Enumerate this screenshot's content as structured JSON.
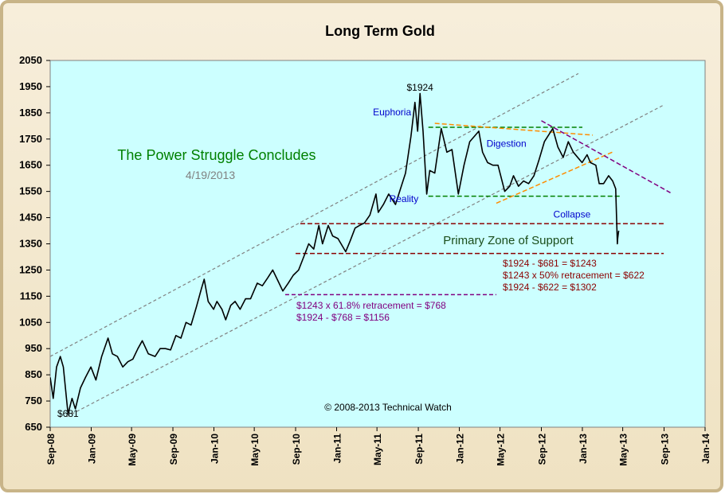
{
  "chart_data": {
    "type": "line",
    "title": "Long Term Gold",
    "subtitle": "The Power Struggle Concludes",
    "date": "4/19/2013",
    "copyright": "© 2008-2013 Technical Watch",
    "xlabel": "",
    "ylabel": "",
    "ylim": [
      650,
      2050
    ],
    "yticks": [
      650,
      750,
      850,
      950,
      1050,
      1150,
      1250,
      1350,
      1450,
      1550,
      1650,
      1750,
      1850,
      1950,
      2050
    ],
    "xlim": [
      "2008-09-01",
      "2014-01-01"
    ],
    "xticks": [
      "Sep-08",
      "Jan-09",
      "May-09",
      "Sep-09",
      "Jan-10",
      "May-10",
      "Sep-10",
      "Jan-11",
      "May-11",
      "Sep-11",
      "Jan-12",
      "May-12",
      "Sep-12",
      "Jan-13",
      "May-13",
      "Sep-13",
      "Jan-14"
    ],
    "grid": false,
    "colors": {
      "plot_bg": "#ccffff",
      "price": "#000000",
      "channel": "#808080",
      "support_zone": "#8b0000",
      "retracement": "#800080",
      "digestion_box": "#008000",
      "wedge": "#ff8c00",
      "downtrend": "#800080",
      "subtitle": "#008000",
      "label_blue": "#0000cc"
    },
    "series": [
      {
        "values": [
          [
            "2008-09-01",
            840
          ],
          [
            "2008-09-10",
            760
          ],
          [
            "2008-09-20",
            880
          ],
          [
            "2008-10-01",
            920
          ],
          [
            "2008-10-10",
            880
          ],
          [
            "2008-10-24",
            700
          ],
          [
            "2008-11-05",
            760
          ],
          [
            "2008-11-15",
            720
          ],
          [
            "2008-11-30",
            800
          ],
          [
            "2008-12-15",
            840
          ],
          [
            "2008-12-31",
            880
          ],
          [
            "2009-01-15",
            830
          ],
          [
            "2009-02-01",
            920
          ],
          [
            "2009-02-20",
            990
          ],
          [
            "2009-03-05",
            930
          ],
          [
            "2009-03-20",
            920
          ],
          [
            "2009-04-05",
            880
          ],
          [
            "2009-04-20",
            900
          ],
          [
            "2009-05-05",
            910
          ],
          [
            "2009-05-20",
            950
          ],
          [
            "2009-06-02",
            980
          ],
          [
            "2009-06-20",
            930
          ],
          [
            "2009-07-10",
            920
          ],
          [
            "2009-07-25",
            950
          ],
          [
            "2009-08-10",
            950
          ],
          [
            "2009-08-25",
            945
          ],
          [
            "2009-09-10",
            1000
          ],
          [
            "2009-09-25",
            990
          ],
          [
            "2009-10-10",
            1050
          ],
          [
            "2009-10-25",
            1040
          ],
          [
            "2009-11-10",
            1110
          ],
          [
            "2009-11-25",
            1180
          ],
          [
            "2009-12-03",
            1215
          ],
          [
            "2009-12-15",
            1130
          ],
          [
            "2009-12-31",
            1100
          ],
          [
            "2010-01-10",
            1130
          ],
          [
            "2010-01-25",
            1100
          ],
          [
            "2010-02-05",
            1060
          ],
          [
            "2010-02-20",
            1115
          ],
          [
            "2010-03-05",
            1130
          ],
          [
            "2010-03-20",
            1100
          ],
          [
            "2010-04-05",
            1140
          ],
          [
            "2010-04-20",
            1140
          ],
          [
            "2010-05-10",
            1200
          ],
          [
            "2010-05-25",
            1190
          ],
          [
            "2010-06-10",
            1220
          ],
          [
            "2010-06-25",
            1250
          ],
          [
            "2010-07-10",
            1210
          ],
          [
            "2010-07-25",
            1170
          ],
          [
            "2010-08-10",
            1200
          ],
          [
            "2010-08-25",
            1230
          ],
          [
            "2010-09-10",
            1250
          ],
          [
            "2010-09-25",
            1300
          ],
          [
            "2010-10-10",
            1350
          ],
          [
            "2010-10-25",
            1330
          ],
          [
            "2010-11-09",
            1420
          ],
          [
            "2010-11-20",
            1350
          ],
          [
            "2010-12-07",
            1420
          ],
          [
            "2010-12-20",
            1380
          ],
          [
            "2011-01-05",
            1370
          ],
          [
            "2011-01-28",
            1320
          ],
          [
            "2011-02-10",
            1360
          ],
          [
            "2011-02-25",
            1410
          ],
          [
            "2011-03-10",
            1420
          ],
          [
            "2011-03-25",
            1430
          ],
          [
            "2011-04-10",
            1460
          ],
          [
            "2011-04-28",
            1540
          ],
          [
            "2011-05-05",
            1470
          ],
          [
            "2011-05-20",
            1500
          ],
          [
            "2011-06-05",
            1540
          ],
          [
            "2011-06-25",
            1500
          ],
          [
            "2011-07-10",
            1560
          ],
          [
            "2011-07-25",
            1620
          ],
          [
            "2011-08-10",
            1760
          ],
          [
            "2011-08-22",
            1890
          ],
          [
            "2011-08-30",
            1780
          ],
          [
            "2011-09-06",
            1924
          ],
          [
            "2011-09-15",
            1780
          ],
          [
            "2011-09-26",
            1540
          ],
          [
            "2011-10-05",
            1630
          ],
          [
            "2011-10-20",
            1620
          ],
          [
            "2011-11-08",
            1790
          ],
          [
            "2011-11-25",
            1700
          ],
          [
            "2011-12-10",
            1710
          ],
          [
            "2011-12-29",
            1540
          ],
          [
            "2012-01-15",
            1650
          ],
          [
            "2012-02-01",
            1740
          ],
          [
            "2012-02-28",
            1780
          ],
          [
            "2012-03-10",
            1700
          ],
          [
            "2012-03-25",
            1660
          ],
          [
            "2012-04-10",
            1650
          ],
          [
            "2012-04-25",
            1650
          ],
          [
            "2012-05-15",
            1550
          ],
          [
            "2012-05-30",
            1570
          ],
          [
            "2012-06-10",
            1610
          ],
          [
            "2012-06-25",
            1570
          ],
          [
            "2012-07-10",
            1590
          ],
          [
            "2012-07-25",
            1580
          ],
          [
            "2012-08-10",
            1610
          ],
          [
            "2012-08-25",
            1670
          ],
          [
            "2012-09-10",
            1740
          ],
          [
            "2012-09-25",
            1770
          ],
          [
            "2012-10-05",
            1790
          ],
          [
            "2012-10-20",
            1720
          ],
          [
            "2012-11-05",
            1680
          ],
          [
            "2012-11-20",
            1740
          ],
          [
            "2012-12-05",
            1700
          ],
          [
            "2012-12-31",
            1660
          ],
          [
            "2013-01-15",
            1690
          ],
          [
            "2013-01-25",
            1660
          ],
          [
            "2013-02-10",
            1650
          ],
          [
            "2013-02-20",
            1580
          ],
          [
            "2013-03-05",
            1580
          ],
          [
            "2013-03-20",
            1610
          ],
          [
            "2013-04-01",
            1590
          ],
          [
            "2013-04-10",
            1560
          ],
          [
            "2013-04-12",
            1480
          ],
          [
            "2013-04-15",
            1350
          ],
          [
            "2013-04-16",
            1370
          ],
          [
            "2013-04-18",
            1390
          ],
          [
            "2013-04-19",
            1400
          ]
        ]
      }
    ],
    "channel_lines": [
      {
        "from": [
          "2008-09-01",
          920
        ],
        "to": [
          "2012-12-20",
          2000
        ]
      },
      {
        "from": [
          "2008-10-20",
          690
        ],
        "to": [
          "2013-08-31",
          1880
        ]
      }
    ],
    "support_zone": {
      "label": "Primary Zone of Support",
      "upper": 1427,
      "lower": 1313,
      "upper_from": "2010-09-15",
      "lower_from": "2010-09-01",
      "to": "2013-08-31"
    },
    "retracement_line": {
      "value": 1156,
      "from": "2010-08-01",
      "to": "2012-04-20"
    },
    "annotations": [
      {
        "text": "$1924",
        "x": "2011-09-06",
        "y": 1935
      },
      {
        "text": "$681",
        "x": "2008-10-24",
        "y": 690
      },
      {
        "text": "Euphoria",
        "x": "2011-06-15",
        "y": 1840
      },
      {
        "text": "Digestion",
        "x": "2012-05-20",
        "y": 1720
      },
      {
        "text": "Reality",
        "x": "2011-07-20",
        "y": 1510
      },
      {
        "text": "Collapse",
        "x": "2012-12-01",
        "y": 1450
      }
    ],
    "retracement_notes": [
      "$1243  x 61.8% retracement = $768",
      "$1924  - $768 = $1156"
    ],
    "support_notes": [
      "$1924  - $681 = $1243",
      "$1243  x 50% retracement = $622",
      "$1924  - $622 = $1302"
    ],
    "digestion_box": {
      "upper": 1795,
      "lower": 1532,
      "from": "2011-10-01",
      "to": "2013-04-25"
    },
    "wedge_lines": [
      {
        "from": [
          "2011-10-20",
          1810
        ],
        "to": [
          "2013-02-01",
          1765
        ]
      },
      {
        "from": [
          "2012-04-20",
          1505
        ],
        "to": [
          "2013-03-31",
          1700
        ]
      }
    ],
    "downtrend_line": {
      "from": [
        "2012-09-01",
        1820
      ],
      "to": [
        "2013-09-20",
        1545
      ]
    }
  }
}
